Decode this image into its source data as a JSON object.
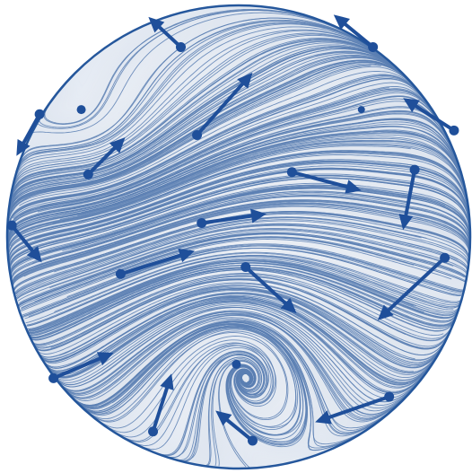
{
  "diagram": {
    "kind": "vector field streamline plot in a circular domain",
    "colors": {
      "disk_fill": "#ffffff",
      "disk_shade": "#d6deea",
      "streamline": "#5a7fb3",
      "vector": "#1f4f9a",
      "boundary": "#25579c"
    },
    "vectors": [
      {
        "from": [
          -0.25,
          0.82
        ],
        "to": [
          -0.39,
          0.95
        ]
      },
      {
        "from": [
          0.58,
          0.82
        ],
        "to": [
          0.41,
          0.96
        ]
      },
      {
        "from": [
          -0.86,
          0.53
        ],
        "to": [
          -0.96,
          0.35
        ]
      },
      {
        "from": [
          -0.65,
          0.27
        ],
        "to": [
          -0.49,
          0.43
        ]
      },
      {
        "from": [
          -0.18,
          0.44
        ],
        "to": [
          0.06,
          0.71
        ]
      },
      {
        "from": [
          0.93,
          0.46
        ],
        "to": [
          0.71,
          0.6
        ]
      },
      {
        "from": [
          0.23,
          0.28
        ],
        "to": [
          0.53,
          0.2
        ]
      },
      {
        "from": [
          0.76,
          0.29
        ],
        "to": [
          0.71,
          0.03
        ]
      },
      {
        "from": [
          -0.98,
          0.05
        ],
        "to": [
          -0.85,
          -0.11
        ]
      },
      {
        "from": [
          -0.16,
          0.06
        ],
        "to": [
          0.12,
          0.1
        ]
      },
      {
        "from": [
          -0.51,
          -0.16
        ],
        "to": [
          -0.19,
          -0.06
        ]
      },
      {
        "from": [
          0.03,
          -0.13
        ],
        "to": [
          0.25,
          -0.33
        ]
      },
      {
        "from": [
          0.89,
          -0.09
        ],
        "to": [
          0.6,
          -0.36
        ]
      },
      {
        "from": [
          -0.8,
          -0.61
        ],
        "to": [
          -0.54,
          -0.5
        ]
      },
      {
        "from": [
          -0.37,
          -0.84
        ],
        "to": [
          -0.29,
          -0.59
        ]
      },
      {
        "from": [
          0.65,
          -0.69
        ],
        "to": [
          0.33,
          -0.8
        ]
      },
      {
        "from": [
          0.06,
          -0.88
        ],
        "to": [
          -0.1,
          -0.75
        ]
      }
    ],
    "critical_points": [
      {
        "type": "center",
        "at": [
          -0.68,
          0.55
        ]
      },
      {
        "type": "saddle",
        "at": [
          0.53,
          0.55
        ]
      },
      {
        "type": "spiral",
        "at": [
          -0.01,
          -0.55
        ]
      }
    ]
  }
}
